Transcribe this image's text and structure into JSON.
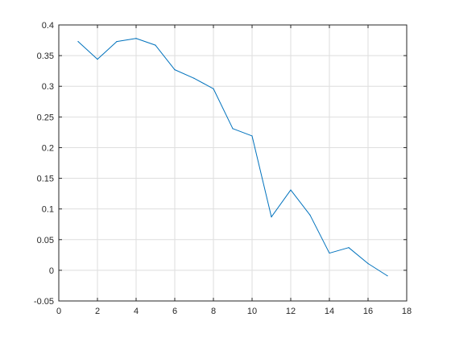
{
  "chart_data": {
    "type": "line",
    "title": "",
    "xlabel": "",
    "ylabel": "",
    "xlim": [
      0,
      18
    ],
    "ylim": [
      -0.05,
      0.4
    ],
    "xticks": [
      0,
      2,
      4,
      6,
      8,
      10,
      12,
      14,
      16,
      18
    ],
    "yticks": [
      -0.05,
      0,
      0.05,
      0.1,
      0.15,
      0.2,
      0.25,
      0.3,
      0.35,
      0.4
    ],
    "xtick_labels": [
      "0",
      "2",
      "4",
      "6",
      "8",
      "10",
      "12",
      "14",
      "16",
      "18"
    ],
    "ytick_labels": [
      "-0.05",
      "0",
      "0.05",
      "0.1",
      "0.15",
      "0.2",
      "0.25",
      "0.3",
      "0.35",
      "0.4"
    ],
    "grid": true,
    "series": [
      {
        "color": "#0072bd",
        "x": [
          1,
          2,
          3,
          4,
          5,
          6,
          7,
          8,
          9,
          10,
          11,
          12,
          13,
          14,
          15,
          16,
          17
        ],
        "y": [
          0.373,
          0.344,
          0.373,
          0.378,
          0.367,
          0.327,
          0.313,
          0.296,
          0.231,
          0.219,
          0.087,
          0.131,
          0.09,
          0.028,
          0.037,
          0.011,
          -0.009
        ]
      }
    ]
  }
}
